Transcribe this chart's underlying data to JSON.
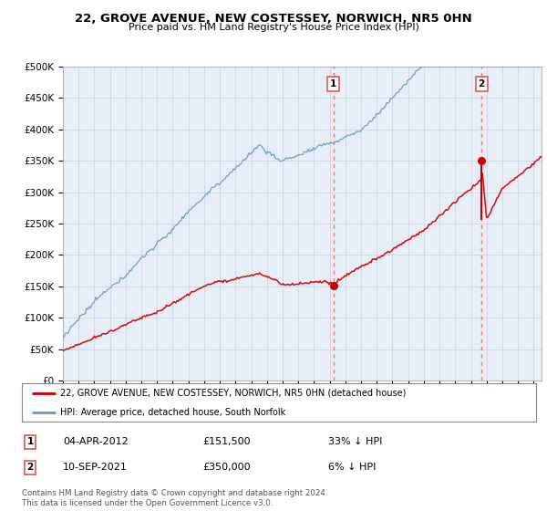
{
  "title": "22, GROVE AVENUE, NEW COSTESSEY, NORWICH, NR5 0HN",
  "subtitle": "Price paid vs. HM Land Registry's House Price Index (HPI)",
  "legend_label_red": "22, GROVE AVENUE, NEW COSTESSEY, NORWICH, NR5 0HN (detached house)",
  "legend_label_blue": "HPI: Average price, detached house, South Norfolk",
  "annotation1_date": "04-APR-2012",
  "annotation1_price": "£151,500",
  "annotation1_hpi": "33% ↓ HPI",
  "annotation2_date": "10-SEP-2021",
  "annotation2_price": "£350,000",
  "annotation2_hpi": "6% ↓ HPI",
  "footer": "Contains HM Land Registry data © Crown copyright and database right 2024.\nThis data is licensed under the Open Government Licence v3.0.",
  "ylim": [
    0,
    500000
  ],
  "yticks": [
    0,
    50000,
    100000,
    150000,
    200000,
    250000,
    300000,
    350000,
    400000,
    450000,
    500000
  ],
  "plot_bg_color": "#e8eef8",
  "red_color": "#cc0000",
  "blue_color": "#6699cc",
  "dashed_color": "#dd6666"
}
